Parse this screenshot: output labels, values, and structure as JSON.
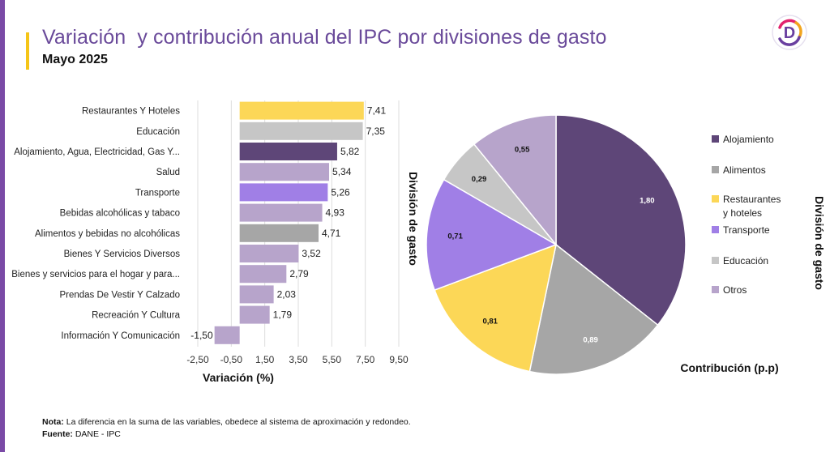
{
  "header": {
    "title": "Variación  y contribución anual del IPC por divisiones de gasto",
    "subtitle": "Mayo 2025"
  },
  "logo": {
    "icon": "brand-d-logo-icon",
    "letter": "D"
  },
  "footer": {
    "note_label": "Nota:",
    "note_text": " La diferencia en la suma de las variables, obedece al sistema de aproximación y redondeo.",
    "source_label": "Fuente:",
    "source_text": " DANE - IPC"
  },
  "colors": {
    "brand_purple": "#7a4aa6",
    "title_purple": "#6a4a9a",
    "accent_yellow": "#f5c518"
  },
  "chart_data": [
    {
      "type": "bar",
      "orientation": "horizontal",
      "categories": [
        "Restaurantes Y Hoteles",
        "Educación",
        "Alojamiento, Agua, Electricidad, Gas Y...",
        "Salud",
        "Transporte",
        "Bebidas alcohólicas y tabaco",
        "Alimentos y bebidas no alcohólicas",
        "Bienes Y Servicios Diversos",
        "Bienes y servicios para el hogar y para...",
        "Prendas De Vestir Y Calzado",
        "Recreación Y Cultura",
        "Información Y Comunicación"
      ],
      "values": [
        7.41,
        7.35,
        5.82,
        5.34,
        5.26,
        4.93,
        4.71,
        3.52,
        2.79,
        2.03,
        1.79,
        -1.5
      ],
      "data_labels": [
        "7,41",
        "7,35",
        "5,82",
        "5,34",
        "5,26",
        "4,93",
        "4,71",
        "3,52",
        "2,79",
        "2,03",
        "1,79",
        "-1,50"
      ],
      "bar_colors": [
        "#fcd757",
        "#c6c6c6",
        "#5e4678",
        "#b7a4cb",
        "#a07fe6",
        "#b7a4cb",
        "#a6a6a6",
        "#b7a4cb",
        "#b7a4cb",
        "#b7a4cb",
        "#b7a4cb",
        "#b7a4cb"
      ],
      "xlabel": "Variación (%)",
      "ylabel": "División de gasto",
      "xlim": [
        -2.5,
        9.5
      ],
      "xticks": [
        -2.5,
        -0.5,
        1.5,
        3.5,
        5.5,
        7.5,
        9.5
      ],
      "xtick_labels": [
        "-2,50",
        "-0,50",
        "1,50",
        "3,50",
        "5,50",
        "7,50",
        "9,50"
      ],
      "grid": "vertical"
    },
    {
      "type": "pie",
      "slices": [
        {
          "name": "Alojamiento",
          "value": 1.8,
          "label": "1,80",
          "color": "#5e4678"
        },
        {
          "name": "Alimentos",
          "value": 0.89,
          "label": "0,89",
          "color": "#a6a6a6"
        },
        {
          "name": "Restaurantes y hoteles",
          "value": 0.81,
          "label": "0,81",
          "color": "#fcd757"
        },
        {
          "name": "Transporte",
          "value": 0.71,
          "label": "0,71",
          "color": "#a07fe6"
        },
        {
          "name": "Educación",
          "value": 0.29,
          "label": "0,29",
          "color": "#c6c6c6"
        },
        {
          "name": "Otros",
          "value": 0.55,
          "label": "0,55",
          "color": "#b7a4cb"
        }
      ],
      "legend": {
        "title": "División de gasto",
        "placement": "right",
        "entries": [
          {
            "lines": [
              "Alojamiento"
            ],
            "color": "#5e4678"
          },
          {
            "lines": [
              "Alimentos"
            ],
            "color": "#a6a6a6"
          },
          {
            "lines": [
              "Restaurantes",
              "y hoteles"
            ],
            "color": "#fcd757"
          },
          {
            "lines": [
              "Transporte"
            ],
            "color": "#a07fe6"
          },
          {
            "lines": [
              "Educación"
            ],
            "color": "#c6c6c6"
          },
          {
            "lines": [
              "Otros"
            ],
            "color": "#b7a4cb"
          }
        ]
      },
      "xlabel": "Contribución (p.p)",
      "start_angle": "12 o'clock",
      "direction": "clockwise"
    }
  ]
}
